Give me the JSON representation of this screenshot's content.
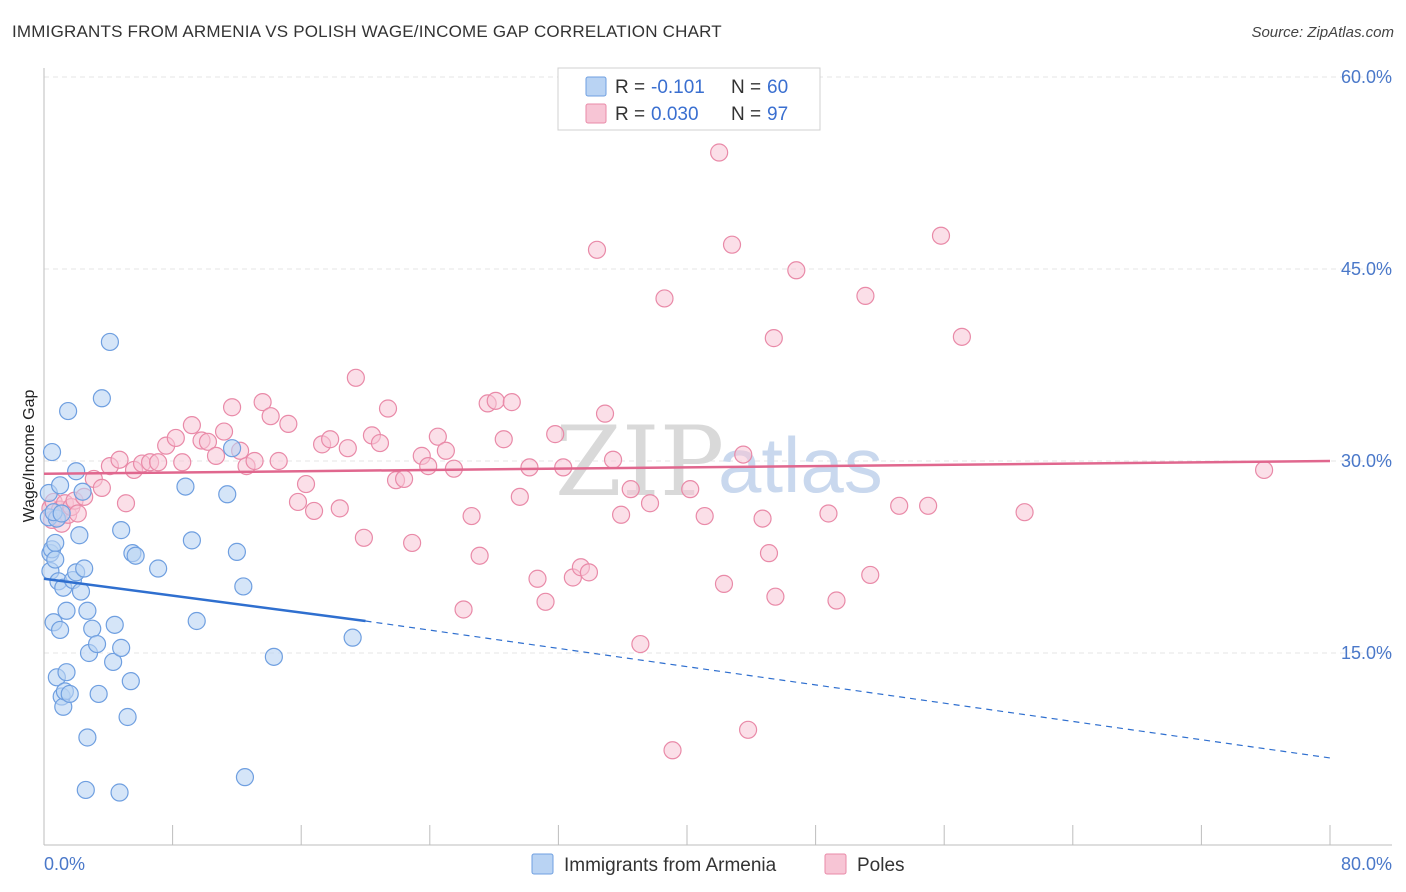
{
  "header": {
    "title": "IMMIGRANTS FROM ARMENIA VS POLISH WAGE/INCOME GAP CORRELATION CHART",
    "source": "Source: ZipAtlas.com"
  },
  "watermark": {
    "zip": "ZIP",
    "atlas": "atlas"
  },
  "colors": {
    "blue": "#6f9fe0",
    "blue_fill": "#b9d3f3",
    "blue_line": "#2f6fcf",
    "pink": "#e98aa8",
    "pink_fill": "#f7c5d5",
    "pink_line": "#e0678e",
    "grid": "#e5e5e5",
    "axis_label": "#4a78c9"
  },
  "legend": {
    "r_label": "R =",
    "n_label": "N =",
    "series": [
      {
        "r": "-0.101",
        "n": "60"
      },
      {
        "r": "0.030",
        "n": "97"
      }
    ]
  },
  "bottom_legend": [
    "Immigrants from Armenia",
    "Poles"
  ],
  "chart_data": {
    "type": "scatter",
    "title": "IMMIGRANTS FROM ARMENIA VS POLISH WAGE/INCOME GAP CORRELATION CHART",
    "xlabel": "",
    "ylabel": "Wage/Income Gap",
    "xlim": [
      0,
      80
    ],
    "ylim": [
      0,
      60
    ],
    "x_tick_labels": [
      "0.0%",
      "80.0%"
    ],
    "y_ticks": [
      15,
      30,
      45,
      60
    ],
    "y_tick_labels": [
      "15.0%",
      "30.0%",
      "45.0%",
      "60.0%"
    ],
    "legend_position": "top-center",
    "series": [
      {
        "name": "Immigrants from Armenia",
        "r": -0.101,
        "n": 60,
        "trend": {
          "solid": [
            [
              0,
              20.8
            ],
            [
              20,
              17.5
            ]
          ],
          "dashed": [
            [
              20,
              17.5
            ],
            [
              80,
              6.8
            ]
          ]
        },
        "points": [
          [
            0.3,
            27.5
          ],
          [
            0.3,
            25.6
          ],
          [
            0.4,
            22.8
          ],
          [
            0.4,
            21.4
          ],
          [
            0.5,
            30.7
          ],
          [
            0.5,
            23.1
          ],
          [
            0.6,
            17.4
          ],
          [
            0.7,
            23.6
          ],
          [
            0.7,
            22.3
          ],
          [
            0.8,
            25.5
          ],
          [
            0.8,
            13.1
          ],
          [
            0.9,
            20.6
          ],
          [
            1.0,
            28.1
          ],
          [
            1.0,
            16.8
          ],
          [
            1.1,
            11.6
          ],
          [
            1.2,
            10.8
          ],
          [
            1.2,
            20.1
          ],
          [
            1.3,
            12.0
          ],
          [
            1.4,
            13.5
          ],
          [
            1.4,
            18.3
          ],
          [
            1.5,
            33.9
          ],
          [
            1.6,
            11.8
          ],
          [
            1.8,
            20.7
          ],
          [
            2.0,
            29.2
          ],
          [
            2.0,
            21.3
          ],
          [
            2.2,
            24.2
          ],
          [
            2.3,
            19.8
          ],
          [
            2.4,
            27.6
          ],
          [
            2.5,
            21.6
          ],
          [
            2.6,
            4.3
          ],
          [
            2.7,
            8.4
          ],
          [
            2.7,
            18.3
          ],
          [
            2.8,
            15.0
          ],
          [
            3.0,
            16.9
          ],
          [
            3.3,
            15.7
          ],
          [
            3.4,
            11.8
          ],
          [
            3.6,
            34.9
          ],
          [
            4.1,
            39.3
          ],
          [
            4.3,
            14.3
          ],
          [
            4.4,
            17.2
          ],
          [
            4.7,
            4.1
          ],
          [
            4.8,
            24.6
          ],
          [
            4.8,
            15.4
          ],
          [
            5.2,
            10.0
          ],
          [
            5.4,
            12.8
          ],
          [
            5.5,
            22.8
          ],
          [
            5.7,
            22.6
          ],
          [
            7.1,
            21.6
          ],
          [
            8.8,
            28.0
          ],
          [
            9.2,
            23.8
          ],
          [
            9.5,
            17.5
          ],
          [
            11.4,
            27.4
          ],
          [
            11.7,
            31.0
          ],
          [
            12.0,
            22.9
          ],
          [
            12.4,
            20.2
          ],
          [
            12.5,
            5.3
          ],
          [
            14.3,
            14.7
          ],
          [
            19.2,
            16.2
          ],
          [
            0.6,
            26.0
          ],
          [
            1.1,
            25.9
          ]
        ]
      },
      {
        "name": "Poles",
        "r": 0.03,
        "n": 97,
        "trend": {
          "solid": [
            [
              0,
              29.0
            ],
            [
              80,
              30.0
            ]
          ]
        },
        "points": [
          [
            0.4,
            26.3
          ],
          [
            0.5,
            25.4
          ],
          [
            0.6,
            26.8
          ],
          [
            0.9,
            25.6
          ],
          [
            1.0,
            26.2
          ],
          [
            1.1,
            25.1
          ],
          [
            1.3,
            26.7
          ],
          [
            1.5,
            25.8
          ],
          [
            1.7,
            26.4
          ],
          [
            1.9,
            26.9
          ],
          [
            2.1,
            25.9
          ],
          [
            2.5,
            27.2
          ],
          [
            3.1,
            28.6
          ],
          [
            3.6,
            27.9
          ],
          [
            4.1,
            29.6
          ],
          [
            4.7,
            30.1
          ],
          [
            5.1,
            26.7
          ],
          [
            5.6,
            29.3
          ],
          [
            6.1,
            29.8
          ],
          [
            6.6,
            29.9
          ],
          [
            7.1,
            29.9
          ],
          [
            7.6,
            31.2
          ],
          [
            8.2,
            31.8
          ],
          [
            8.6,
            29.9
          ],
          [
            9.2,
            32.8
          ],
          [
            9.8,
            31.6
          ],
          [
            10.2,
            31.5
          ],
          [
            10.7,
            30.4
          ],
          [
            11.2,
            32.3
          ],
          [
            11.7,
            34.2
          ],
          [
            12.2,
            30.8
          ],
          [
            12.6,
            29.6
          ],
          [
            13.1,
            30.0
          ],
          [
            13.6,
            34.6
          ],
          [
            14.1,
            33.5
          ],
          [
            14.6,
            30.0
          ],
          [
            15.2,
            32.9
          ],
          [
            15.8,
            26.8
          ],
          [
            16.3,
            28.2
          ],
          [
            16.8,
            26.1
          ],
          [
            17.3,
            31.3
          ],
          [
            17.8,
            31.7
          ],
          [
            18.4,
            26.3
          ],
          [
            18.9,
            31.0
          ],
          [
            19.4,
            36.5
          ],
          [
            19.9,
            24.0
          ],
          [
            20.4,
            32.0
          ],
          [
            20.9,
            31.4
          ],
          [
            21.4,
            34.1
          ],
          [
            21.9,
            28.5
          ],
          [
            22.4,
            28.6
          ],
          [
            22.9,
            23.6
          ],
          [
            23.5,
            30.4
          ],
          [
            23.9,
            29.6
          ],
          [
            24.5,
            31.9
          ],
          [
            25.0,
            30.8
          ],
          [
            25.5,
            29.4
          ],
          [
            26.1,
            18.4
          ],
          [
            26.6,
            25.7
          ],
          [
            27.1,
            22.6
          ],
          [
            27.6,
            34.5
          ],
          [
            28.1,
            34.7
          ],
          [
            28.6,
            31.7
          ],
          [
            29.1,
            34.6
          ],
          [
            29.6,
            27.2
          ],
          [
            30.2,
            29.5
          ],
          [
            30.7,
            20.8
          ],
          [
            31.2,
            19.0
          ],
          [
            31.8,
            32.1
          ],
          [
            32.3,
            29.5
          ],
          [
            32.9,
            20.9
          ],
          [
            33.4,
            21.7
          ],
          [
            33.9,
            21.3
          ],
          [
            34.4,
            46.5
          ],
          [
            34.9,
            33.7
          ],
          [
            35.4,
            30.1
          ],
          [
            35.9,
            25.8
          ],
          [
            36.5,
            27.8
          ],
          [
            37.1,
            15.7
          ],
          [
            37.7,
            26.7
          ],
          [
            38.6,
            42.7
          ],
          [
            39.1,
            7.4
          ],
          [
            40.2,
            27.8
          ],
          [
            41.1,
            25.7
          ],
          [
            42.0,
            54.1
          ],
          [
            42.3,
            20.4
          ],
          [
            42.8,
            46.9
          ],
          [
            43.5,
            30.5
          ],
          [
            44.7,
            25.5
          ],
          [
            45.1,
            22.8
          ],
          [
            45.4,
            39.6
          ],
          [
            45.5,
            19.4
          ],
          [
            46.8,
            44.9
          ],
          [
            48.8,
            25.9
          ],
          [
            49.3,
            19.1
          ],
          [
            51.1,
            42.9
          ],
          [
            51.4,
            21.1
          ]
        ],
        "extra_points": [
          [
            53.2,
            26.5
          ],
          [
            55.0,
            26.5
          ],
          [
            55.8,
            47.6
          ],
          [
            57.1,
            39.7
          ],
          [
            61.0,
            26.0
          ],
          [
            75.9,
            29.3
          ],
          [
            43.8,
            9.0
          ]
        ]
      }
    ]
  }
}
